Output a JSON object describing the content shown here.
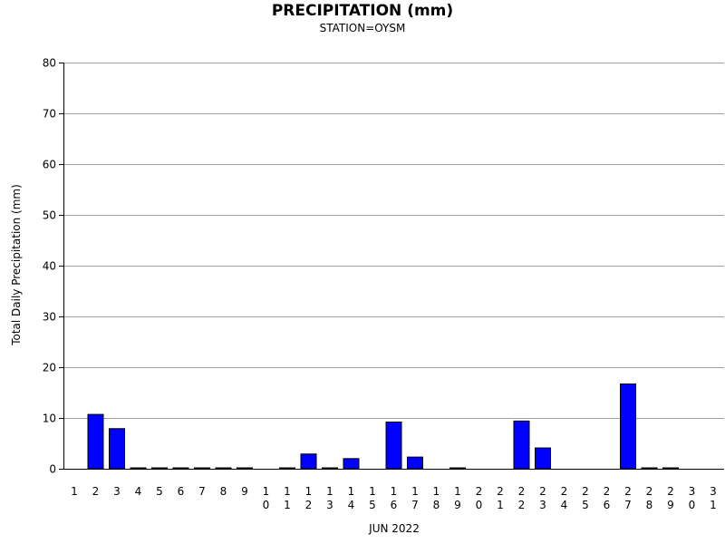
{
  "chart_data": {
    "type": "bar",
    "title": "PRECIPITATION (mm)",
    "subtitle": "STATION=OYSM",
    "xlabel": "JUN 2022",
    "ylabel": "Total Daily Precipitation (mm)",
    "ylim": [
      0,
      80
    ],
    "yticks": [
      "0",
      "10",
      "20",
      "30",
      "40",
      "50",
      "60",
      "70",
      "80"
    ],
    "grid": true,
    "bar_color": "#0000ff",
    "categories": [
      "1",
      "2",
      "3",
      "4",
      "5",
      "6",
      "7",
      "8",
      "9",
      "10",
      "11",
      "12",
      "13",
      "14",
      "15",
      "16",
      "17",
      "18",
      "19",
      "20",
      "21",
      "22",
      "23",
      "24",
      "25",
      "26",
      "27",
      "28",
      "29",
      "30",
      "31"
    ],
    "values": [
      null,
      10.7,
      7.9,
      0.1,
      0.1,
      0.1,
      0.1,
      0.1,
      0.1,
      null,
      0.1,
      2.9,
      0.1,
      2.0,
      null,
      9.2,
      2.3,
      null,
      0.1,
      null,
      null,
      9.4,
      4.1,
      null,
      null,
      null,
      16.7,
      0.1,
      0.1,
      null,
      null
    ]
  }
}
